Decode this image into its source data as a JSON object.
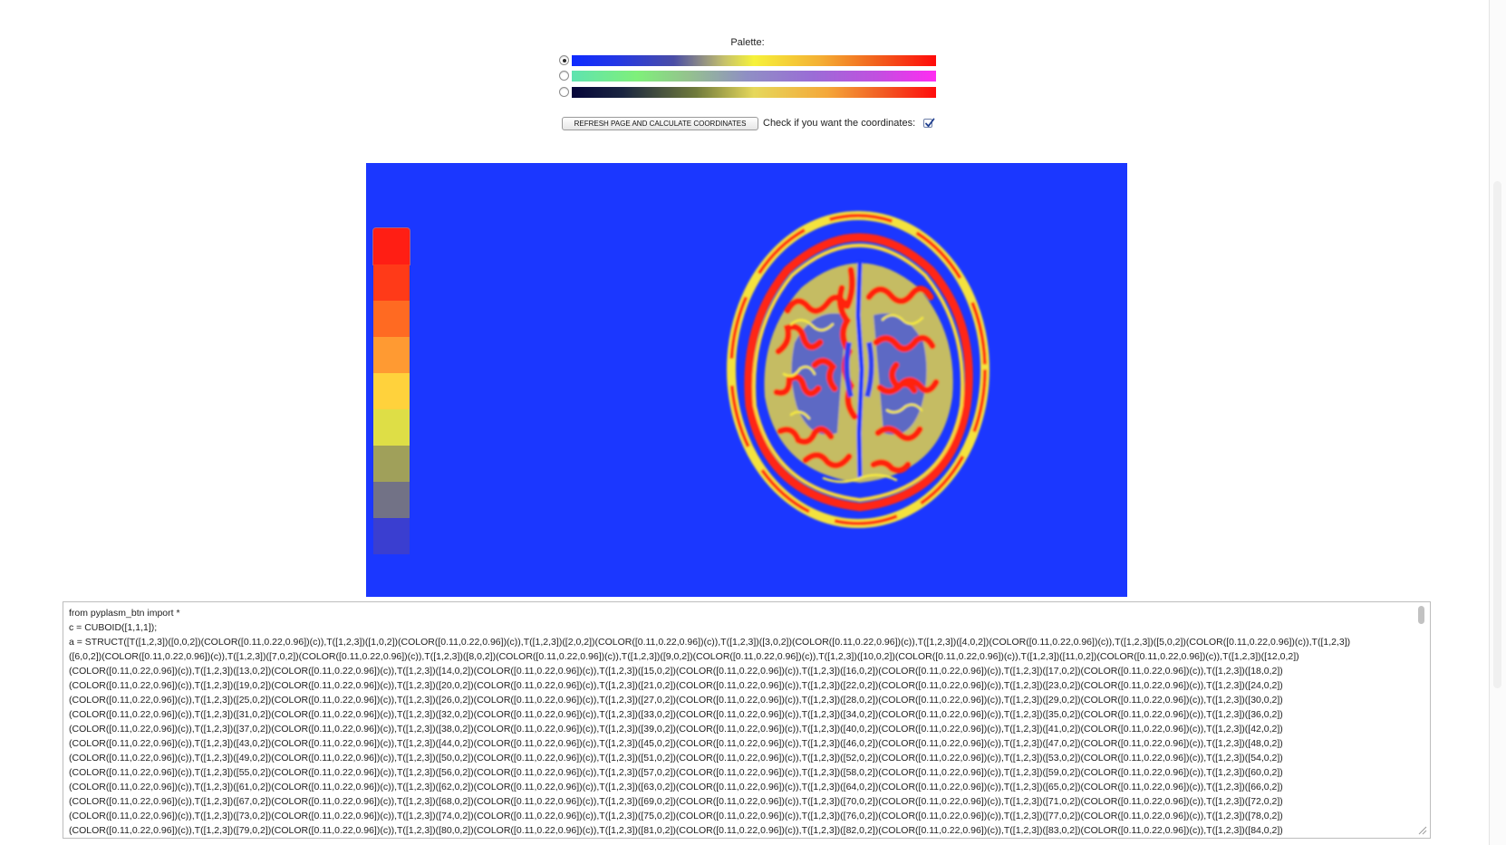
{
  "palette": {
    "title": "Palette:",
    "options": [
      {
        "checked": true,
        "gradient": "linear-gradient(to right,#0f2bff 0%,#2337e6 12%,#4a4da6 28%,#c7c26a 42%,#f6f23a 50%,#f4b034 68%,#f25f1c 84%,#ff0a0a 100%)"
      },
      {
        "checked": false,
        "gradient": "linear-gradient(to right,#5fe3b0 0%,#7ff07a 18%,#95c28e 32%,#8f8fc4 48%,#9a6dd6 66%,#c24fe0 84%,#ff2cf2 100%)"
      },
      {
        "checked": false,
        "gradient": "linear-gradient(to right,#06063a 0%,#1a2540 14%,#6f7a3c 34%,#e6d85b 50%,#f4a83a 70%,#f25822 86%,#ff0c0c 100%)"
      }
    ]
  },
  "controls": {
    "refresh_label": "REFRESH PAGE AND CALCULATE COORDINATES",
    "check_label": "Check if you want the coordinates:",
    "check_checked": true
  },
  "viewport": {
    "background": "#1b37ff",
    "legend_colors": [
      "#ff1e14",
      "#ff3a18",
      "#ff6a22",
      "#ff9a32",
      "#ffd23c",
      "#dede46",
      "#a0a05a",
      "#727286",
      "#3a3ed0"
    ]
  },
  "code": {
    "lines": [
      "from pyplasm_btn import *",
      "c = CUBOID([1,1,1]);",
      "a = STRUCT([T([1,2,3])([0,0,2])(COLOR([0.11,0.22,0.96])(c)),T([1,2,3])([1,0,2])(COLOR([0.11,0.22,0.96])(c)),T([1,2,3])([2,0,2])(COLOR([0.11,0.22,0.96])(c)),T([1,2,3])([3,0,2])(COLOR([0.11,0.22,0.96])(c)),T([1,2,3])([4,0,2])(COLOR([0.11,0.22,0.96])(c)),T([1,2,3])([5,0,2])(COLOR([0.11,0.22,0.96])(c)),T([1,2,3])",
      "([6,0,2])(COLOR([0.11,0.22,0.96])(c)),T([1,2,3])([7,0,2])(COLOR([0.11,0.22,0.96])(c)),T([1,2,3])([8,0,2])(COLOR([0.11,0.22,0.96])(c)),T([1,2,3])([9,0,2])(COLOR([0.11,0.22,0.96])(c)),T([1,2,3])([10,0,2])(COLOR([0.11,0.22,0.96])(c)),T([1,2,3])([11,0,2])(COLOR([0.11,0.22,0.96])(c)),T([1,2,3])([12,0,2])",
      "(COLOR([0.11,0.22,0.96])(c)),T([1,2,3])([13,0,2])(COLOR([0.11,0.22,0.96])(c)),T([1,2,3])([14,0,2])(COLOR([0.11,0.22,0.96])(c)),T([1,2,3])([15,0,2])(COLOR([0.11,0.22,0.96])(c)),T([1,2,3])([16,0,2])(COLOR([0.11,0.22,0.96])(c)),T([1,2,3])([17,0,2])(COLOR([0.11,0.22,0.96])(c)),T([1,2,3])([18,0,2])",
      "(COLOR([0.11,0.22,0.96])(c)),T([1,2,3])([19,0,2])(COLOR([0.11,0.22,0.96])(c)),T([1,2,3])([20,0,2])(COLOR([0.11,0.22,0.96])(c)),T([1,2,3])([21,0,2])(COLOR([0.11,0.22,0.96])(c)),T([1,2,3])([22,0,2])(COLOR([0.11,0.22,0.96])(c)),T([1,2,3])([23,0,2])(COLOR([0.11,0.22,0.96])(c)),T([1,2,3])([24,0,2])",
      "(COLOR([0.11,0.22,0.96])(c)),T([1,2,3])([25,0,2])(COLOR([0.11,0.22,0.96])(c)),T([1,2,3])([26,0,2])(COLOR([0.11,0.22,0.96])(c)),T([1,2,3])([27,0,2])(COLOR([0.11,0.22,0.96])(c)),T([1,2,3])([28,0,2])(COLOR([0.11,0.22,0.96])(c)),T([1,2,3])([29,0,2])(COLOR([0.11,0.22,0.96])(c)),T([1,2,3])([30,0,2])",
      "(COLOR([0.11,0.22,0.96])(c)),T([1,2,3])([31,0,2])(COLOR([0.11,0.22,0.96])(c)),T([1,2,3])([32,0,2])(COLOR([0.11,0.22,0.96])(c)),T([1,2,3])([33,0,2])(COLOR([0.11,0.22,0.96])(c)),T([1,2,3])([34,0,2])(COLOR([0.11,0.22,0.96])(c)),T([1,2,3])([35,0,2])(COLOR([0.11,0.22,0.96])(c)),T([1,2,3])([36,0,2])",
      "(COLOR([0.11,0.22,0.96])(c)),T([1,2,3])([37,0,2])(COLOR([0.11,0.22,0.96])(c)),T([1,2,3])([38,0,2])(COLOR([0.11,0.22,0.96])(c)),T([1,2,3])([39,0,2])(COLOR([0.11,0.22,0.96])(c)),T([1,2,3])([40,0,2])(COLOR([0.11,0.22,0.96])(c)),T([1,2,3])([41,0,2])(COLOR([0.11,0.22,0.96])(c)),T([1,2,3])([42,0,2])",
      "(COLOR([0.11,0.22,0.96])(c)),T([1,2,3])([43,0,2])(COLOR([0.11,0.22,0.96])(c)),T([1,2,3])([44,0,2])(COLOR([0.11,0.22,0.96])(c)),T([1,2,3])([45,0,2])(COLOR([0.11,0.22,0.96])(c)),T([1,2,3])([46,0,2])(COLOR([0.11,0.22,0.96])(c)),T([1,2,3])([47,0,2])(COLOR([0.11,0.22,0.96])(c)),T([1,2,3])([48,0,2])",
      "(COLOR([0.11,0.22,0.96])(c)),T([1,2,3])([49,0,2])(COLOR([0.11,0.22,0.96])(c)),T([1,2,3])([50,0,2])(COLOR([0.11,0.22,0.96])(c)),T([1,2,3])([51,0,2])(COLOR([0.11,0.22,0.96])(c)),T([1,2,3])([52,0,2])(COLOR([0.11,0.22,0.96])(c)),T([1,2,3])([53,0,2])(COLOR([0.11,0.22,0.96])(c)),T([1,2,3])([54,0,2])",
      "(COLOR([0.11,0.22,0.96])(c)),T([1,2,3])([55,0,2])(COLOR([0.11,0.22,0.96])(c)),T([1,2,3])([56,0,2])(COLOR([0.11,0.22,0.96])(c)),T([1,2,3])([57,0,2])(COLOR([0.11,0.22,0.96])(c)),T([1,2,3])([58,0,2])(COLOR([0.11,0.22,0.96])(c)),T([1,2,3])([59,0,2])(COLOR([0.11,0.22,0.96])(c)),T([1,2,3])([60,0,2])",
      "(COLOR([0.11,0.22,0.96])(c)),T([1,2,3])([61,0,2])(COLOR([0.11,0.22,0.96])(c)),T([1,2,3])([62,0,2])(COLOR([0.11,0.22,0.96])(c)),T([1,2,3])([63,0,2])(COLOR([0.11,0.22,0.96])(c)),T([1,2,3])([64,0,2])(COLOR([0.11,0.22,0.96])(c)),T([1,2,3])([65,0,2])(COLOR([0.11,0.22,0.96])(c)),T([1,2,3])([66,0,2])",
      "(COLOR([0.11,0.22,0.96])(c)),T([1,2,3])([67,0,2])(COLOR([0.11,0.22,0.96])(c)),T([1,2,3])([68,0,2])(COLOR([0.11,0.22,0.96])(c)),T([1,2,3])([69,0,2])(COLOR([0.11,0.22,0.96])(c)),T([1,2,3])([70,0,2])(COLOR([0.11,0.22,0.96])(c)),T([1,2,3])([71,0,2])(COLOR([0.11,0.22,0.96])(c)),T([1,2,3])([72,0,2])",
      "(COLOR([0.11,0.22,0.96])(c)),T([1,2,3])([73,0,2])(COLOR([0.11,0.22,0.96])(c)),T([1,2,3])([74,0,2])(COLOR([0.11,0.22,0.96])(c)),T([1,2,3])([75,0,2])(COLOR([0.11,0.22,0.96])(c)),T([1,2,3])([76,0,2])(COLOR([0.11,0.22,0.96])(c)),T([1,2,3])([77,0,2])(COLOR([0.11,0.22,0.96])(c)),T([1,2,3])([78,0,2])",
      "(COLOR([0.11,0.22,0.96])(c)),T([1,2,3])([79,0,2])(COLOR([0.11,0.22,0.96])(c)),T([1,2,3])([80,0,2])(COLOR([0.11,0.22,0.96])(c)),T([1,2,3])([81,0,2])(COLOR([0.11,0.22,0.96])(c)),T([1,2,3])([82,0,2])(COLOR([0.11,0.22,0.96])(c)),T([1,2,3])([83,0,2])(COLOR([0.11,0.22,0.96])(c)),T([1,2,3])([84,0,2])"
    ]
  }
}
